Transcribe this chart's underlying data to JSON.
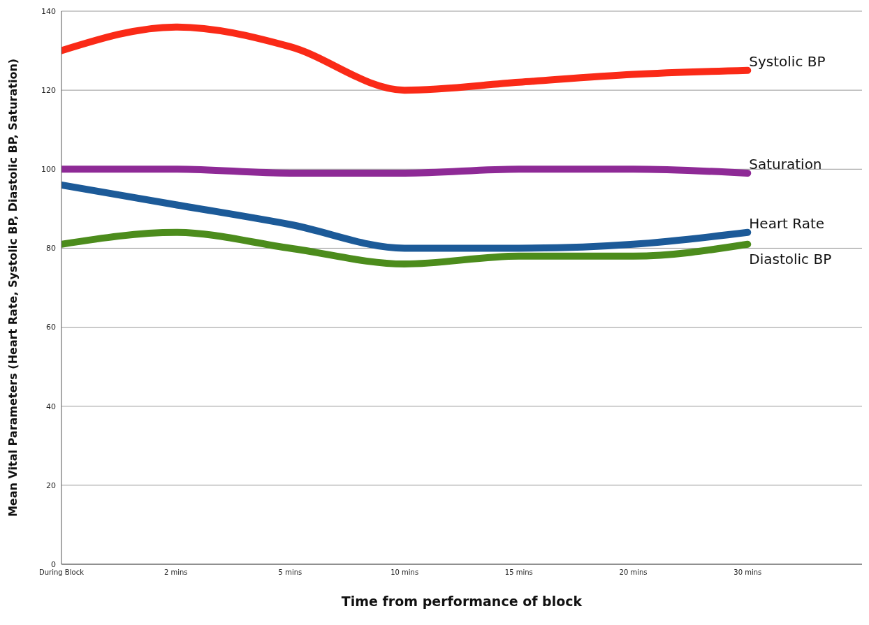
{
  "chart_data": {
    "type": "line",
    "xlabel": "Time from performance of block",
    "ylabel": "Mean Vital Parameters (Heart Rate, Systolic BP, Diastolic BP, Saturation)",
    "categories": [
      "During Block",
      "2 mins",
      "5 mins",
      "10 mins",
      "15 mins",
      "20 mins",
      "30 mins"
    ],
    "series": [
      {
        "name": "Systolic BP",
        "color": "#fa2a17",
        "values": [
          130,
          136,
          131,
          120,
          122,
          124,
          125
        ]
      },
      {
        "name": "Saturation",
        "color": "#8e2a96",
        "values": [
          100,
          100,
          99,
          99,
          100,
          100,
          99
        ]
      },
      {
        "name": "Heart Rate",
        "color": "#1c5a98",
        "values": [
          96,
          91,
          86,
          80,
          80,
          81,
          84
        ]
      },
      {
        "name": "Diastolic BP",
        "color": "#4c8c1c",
        "values": [
          81,
          84,
          80,
          76,
          78,
          78,
          81
        ]
      }
    ],
    "ylim": [
      0,
      140
    ],
    "yticks": [
      0,
      20,
      40,
      60,
      80,
      100,
      120,
      140
    ],
    "grid": "y",
    "marker": "none",
    "line_style": "solid"
  }
}
